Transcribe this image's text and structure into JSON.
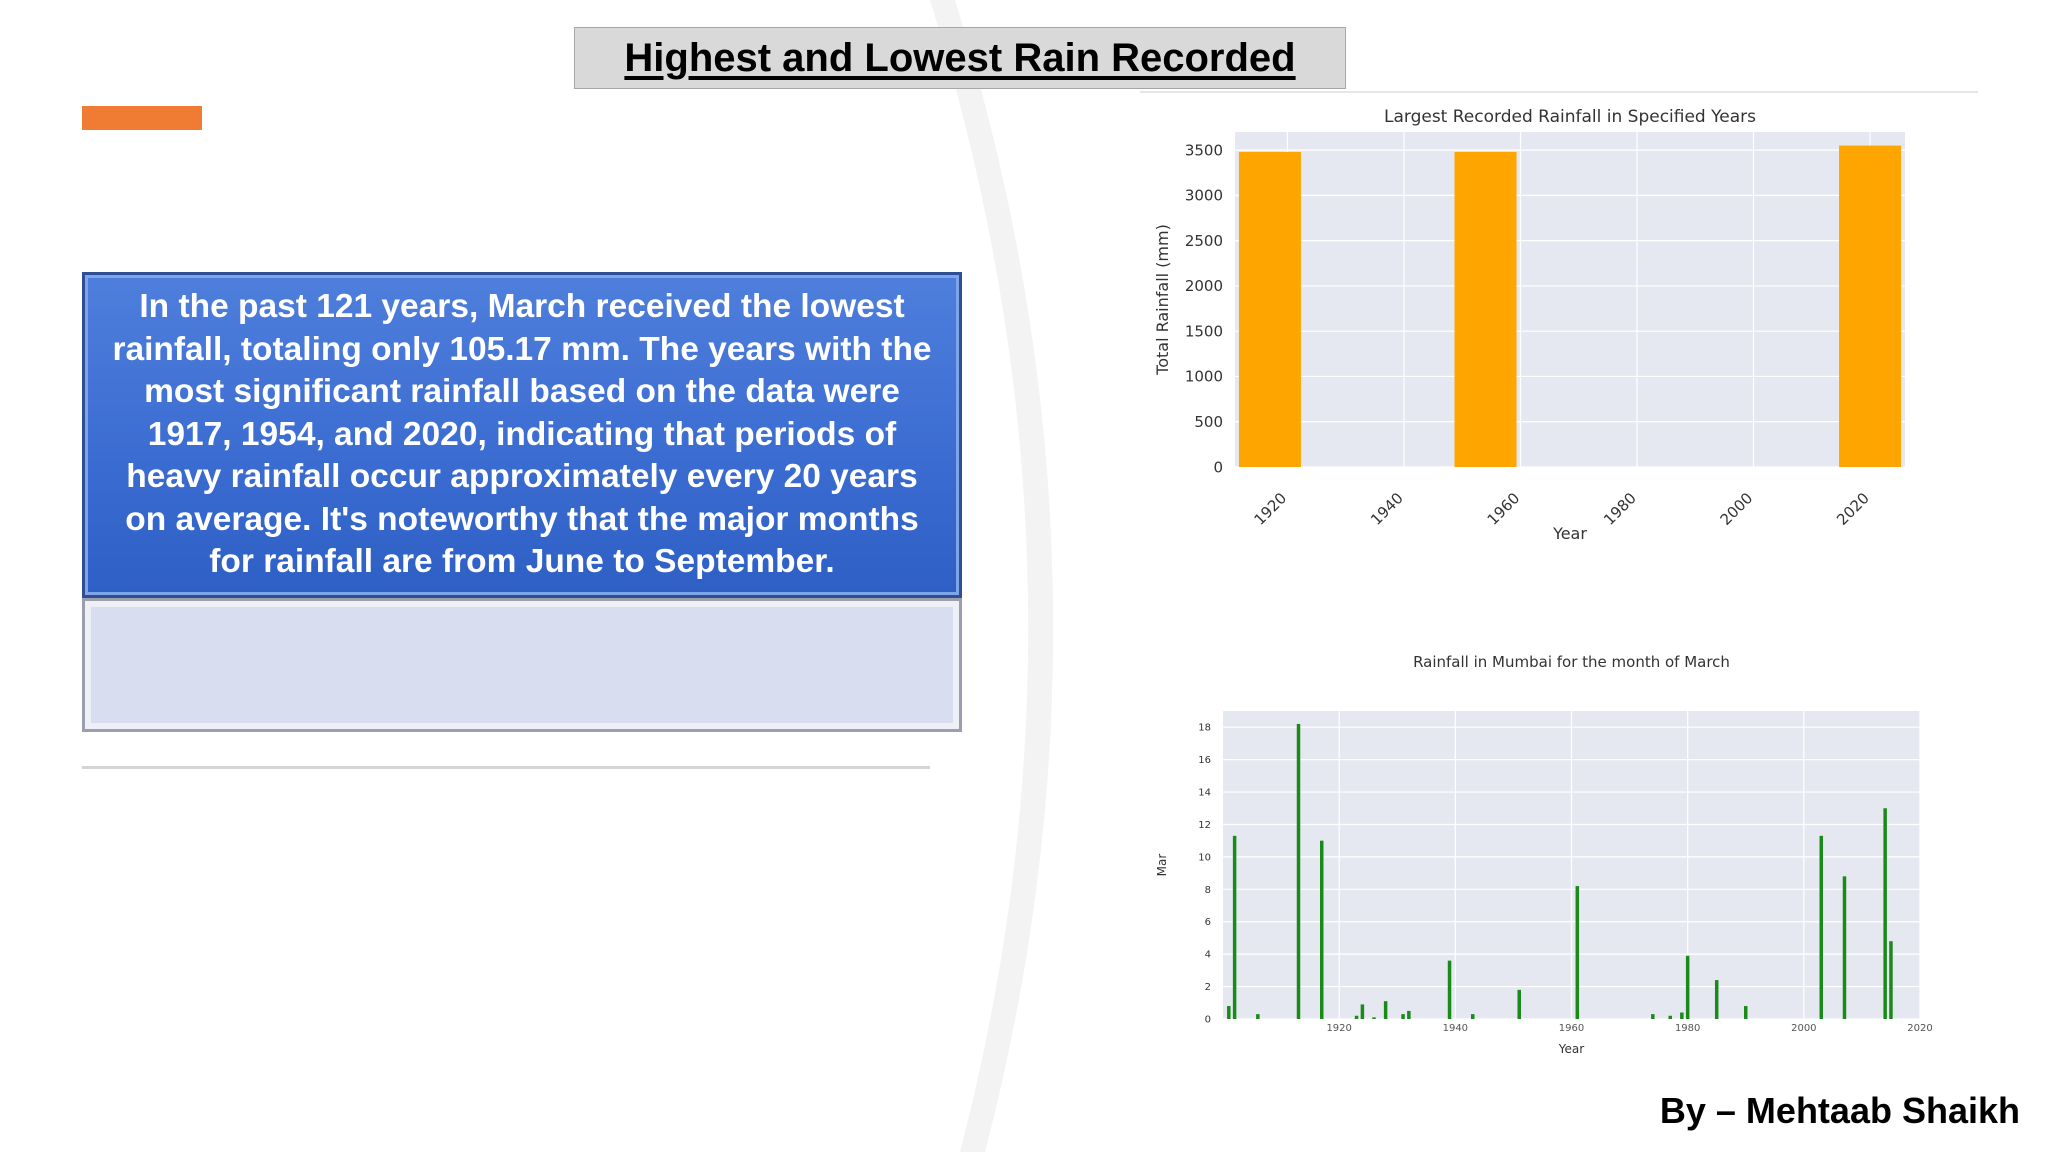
{
  "slide": {
    "title": "Highest and Lowest Rain Recorded",
    "summary": "In the past 121 years, March received the lowest rainfall, totaling only 105.17 mm. The years with the most significant rainfall based on the data were 1917, 1954, and 2020, indicating that periods of heavy rainfall occur approximately every 20 years on average. It's noteworthy that the major months for rainfall are from June to September.",
    "author": "By – Mehtaab Shaikh"
  },
  "colors": {
    "accent": "#f07c33",
    "box_blue": "#3a6bd0",
    "bar_orange": "#ffa500",
    "bar_green": "#1a8a1a",
    "plot_bg": "#e5e8f0"
  },
  "chart_data": [
    {
      "type": "bar",
      "title": "Largest Recorded Rainfall in Specified Years",
      "xlabel": "Year",
      "ylabel": "Total Rainfall (mm)",
      "x": [
        1917,
        1954,
        2020
      ],
      "values": [
        3480,
        3480,
        3550
      ],
      "xlim": [
        1911,
        2026
      ],
      "ylim": [
        0,
        3700
      ],
      "xticks": [
        "1920",
        "1940",
        "1960",
        "1980",
        "2000",
        "2020"
      ],
      "yticks": [
        "0",
        "500",
        "1000",
        "1500",
        "2000",
        "2500",
        "3000",
        "3500"
      ],
      "grid": true,
      "bar_color": "#ffa500"
    },
    {
      "type": "bar",
      "title": "Rainfall in Mumbai for the month of March",
      "xlabel": "Year",
      "ylabel": "Mar",
      "x": [
        1901,
        1902,
        1906,
        1913,
        1917,
        1923,
        1924,
        1926,
        1928,
        1931,
        1932,
        1939,
        1943,
        1951,
        1961,
        1974,
        1977,
        1979,
        1980,
        1985,
        1990,
        2003,
        2007,
        2014,
        2015
      ],
      "values": [
        0.8,
        11.3,
        0.3,
        18.2,
        11.0,
        0.2,
        0.9,
        0.1,
        1.1,
        0.3,
        0.5,
        3.6,
        0.3,
        1.8,
        8.2,
        0.3,
        0.2,
        0.4,
        3.9,
        2.4,
        0.8,
        11.3,
        8.8,
        13.0,
        4.8
      ],
      "xlim": [
        1900,
        2020
      ],
      "ylim": [
        0,
        19
      ],
      "xticks": [
        "1920",
        "1940",
        "1960",
        "1980",
        "2000",
        "2020"
      ],
      "yticks": [
        "0",
        "2",
        "4",
        "6",
        "8",
        "10",
        "12",
        "14",
        "16",
        "18"
      ],
      "grid": true,
      "bar_color": "#1a8a1a"
    }
  ]
}
